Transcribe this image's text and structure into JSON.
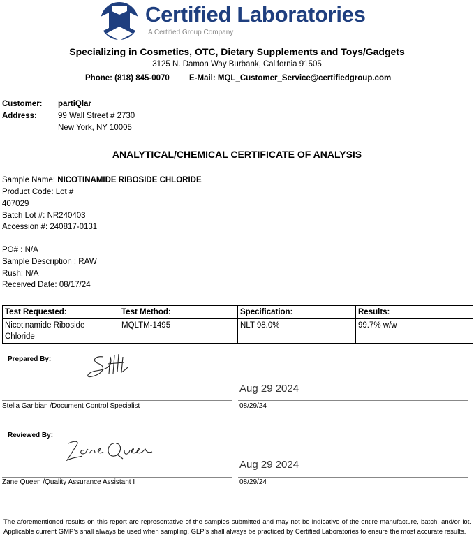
{
  "header": {
    "brand": "Certified Laboratories",
    "tagline": "A Certified Group Company",
    "brand_color": "#1f3f7f",
    "specialty": "Specializing in Cosmetics, OTC, Dietary Supplements and Toys/Gadgets",
    "address": "3125 N. Damon Way Burbank, California 91505",
    "phone": "Phone: (818) 845-0070",
    "email": "E-Mail: MQL_Customer_Service@certifiedgroup.com"
  },
  "customer": {
    "customer_label": "Customer:",
    "customer": "partiQlar",
    "address_label": "Address:",
    "address1": "99 Wall Street # 2730",
    "address2": "New York, NY 10005"
  },
  "title": "ANALYTICAL/CHEMICAL CERTIFICATE OF ANALYSIS",
  "sample": {
    "name_label": "Sample Name: ",
    "name": "NICOTINAMIDE RIBOSIDE CHLORIDE",
    "product_code": "Product Code: Lot #",
    "lot": "407029",
    "batch": "Batch Lot #: NR240403",
    "accession": "Accession #: 240817-0131",
    "po": "PO# : N/A",
    "description": "Sample Description : RAW",
    "rush": "Rush: N/A",
    "received": "Received Date: 08/17/24"
  },
  "table": {
    "headers": [
      "Test Requested:",
      "Test Method:",
      "Specification:",
      "Results:"
    ],
    "rows": [
      [
        "Nicotinamide Riboside Chloride",
        "MQLTM-1495",
        "NLT 98.0%",
        "99.7% w/w"
      ]
    ]
  },
  "prepared": {
    "label": "Prepared By:",
    "date_stamp": "Aug 29 2024",
    "name": "Stella Garibian /Document Control Specialist",
    "date": "08/29/24"
  },
  "reviewed": {
    "label": "Reviewed By:",
    "date_stamp": "Aug 29 2024",
    "name": "Zane Queen /Quality Assurance Assistant I",
    "date": "08/29/24"
  },
  "footer": "The aforementioned results on this report are representative of the samples submitted and may not be indicative of the entire manufacture, batch, and/or lot. Applicable current GMP’s shall always be used when sampling. GLP’s shall always be practiced by Certified Laboratories to ensure the most accurate results."
}
